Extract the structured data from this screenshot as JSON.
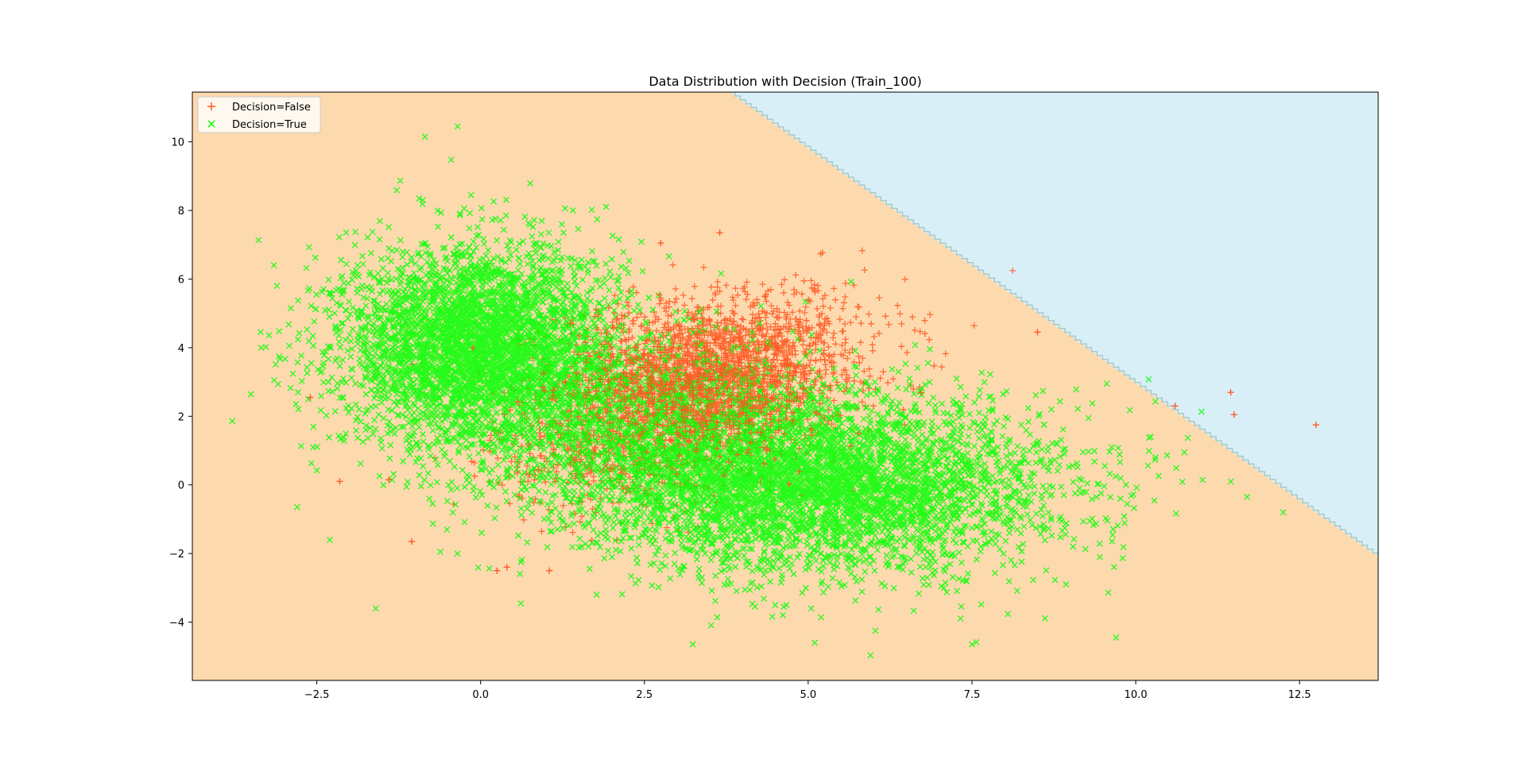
{
  "chart_data": {
    "type": "scatter",
    "title": "Data Distribution with Decision (Train_100)",
    "xlabel": "",
    "ylabel": "",
    "xlim": [
      -4.4,
      13.7
    ],
    "ylim": [
      -5.7,
      11.45
    ],
    "x_ticks": [
      -2.5,
      0.0,
      2.5,
      5.0,
      7.5,
      10.0,
      12.5
    ],
    "x_tick_labels": [
      "−2.5",
      "0.0",
      "2.5",
      "5.0",
      "7.5",
      "10.0",
      "12.5"
    ],
    "y_ticks": [
      -4,
      -2,
      0,
      2,
      4,
      6,
      8,
      10
    ],
    "y_tick_labels": [
      "−4",
      "−2",
      "0",
      "2",
      "4",
      "6",
      "8",
      "10"
    ],
    "grid": false,
    "legend_position": "top-left",
    "decision_regions": {
      "boundary_line": {
        "points": [
          [
            3.8,
            11.45
          ],
          [
            13.7,
            -2.1
          ]
        ]
      },
      "colors": {
        "predicted_true": "#fdd9ae",
        "predicted_false": "#d9eff7",
        "boundary": "#a9c9c4"
      }
    },
    "series": [
      {
        "name": "Decision=False",
        "marker": "+",
        "color": "#ff5722",
        "clusters": [
          {
            "center": [
              3.4,
              3.0
            ],
            "std": [
              1.1,
              1.1
            ],
            "count": 1700
          },
          {
            "center": [
              2.0,
              1.0
            ],
            "std": [
              0.9,
              0.9
            ],
            "count": 500
          },
          {
            "center": [
              4.5,
              4.5
            ],
            "std": [
              1.0,
              0.8
            ],
            "count": 300
          }
        ],
        "outliers": [
          [
            11.45,
            2.7
          ],
          [
            11.5,
            2.05
          ],
          [
            12.75,
            1.75
          ],
          [
            10.6,
            2.3
          ],
          [
            8.5,
            4.45
          ],
          [
            3.65,
            7.35
          ],
          [
            2.75,
            7.05
          ],
          [
            -2.6,
            2.55
          ],
          [
            -2.15,
            0.1
          ],
          [
            -1.4,
            0.15
          ],
          [
            -1.05,
            -1.65
          ],
          [
            0.4,
            -2.4
          ],
          [
            0.25,
            -2.5
          ],
          [
            1.05,
            -2.5
          ]
        ]
      },
      {
        "name": "Decision=True",
        "marker": "x",
        "color": "#00ff00",
        "clusters": [
          {
            "center": [
              0.0,
              4.0
            ],
            "std": [
              1.05,
              1.45
            ],
            "count": 4200
          },
          {
            "center": [
              5.2,
              0.0
            ],
            "std": [
              1.8,
              1.25
            ],
            "count": 4600
          },
          {
            "center": [
              2.7,
              1.6
            ],
            "std": [
              1.4,
              1.4
            ],
            "count": 1400
          }
        ],
        "outliers": [
          [
            -3.35,
            4.0
          ],
          [
            -3.15,
            3.05
          ],
          [
            -0.35,
            10.45
          ],
          [
            -0.85,
            10.15
          ],
          [
            -1.6,
            -3.6
          ],
          [
            7.5,
            -4.65
          ],
          [
            9.7,
            -4.45
          ],
          [
            12.25,
            -0.8
          ],
          [
            11.7,
            -0.35
          ],
          [
            11.45,
            0.1
          ],
          [
            -2.8,
            -0.65
          ],
          [
            -2.3,
            -1.6
          ],
          [
            5.1,
            -4.6
          ]
        ]
      }
    ]
  }
}
